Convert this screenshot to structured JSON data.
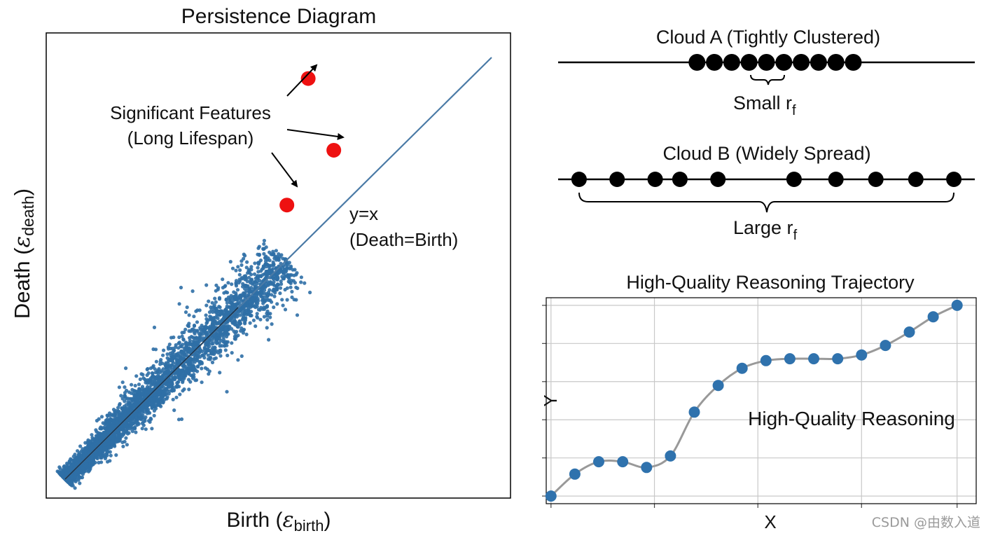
{
  "persistence": {
    "title": "Persistence Diagram",
    "xlabel": "Birth (",
    "xlabel_sym": "ε",
    "xlabel_sub": "birth",
    "xlabel_close": ")",
    "ylabel": "Death (",
    "ylabel_sym": "ε",
    "ylabel_sub": "death",
    "ylabel_close": ")",
    "annotation_line1": "Significant Features",
    "annotation_line2": "(Long Lifespan)",
    "diag_label1": "y=x",
    "diag_label2": "(Death=Birth)"
  },
  "cloud_a": {
    "title": "Cloud A (Tightly Clustered)",
    "label": "Small r",
    "label_sub": "f"
  },
  "cloud_b": {
    "title": "Cloud B (Widely Spread)",
    "label": "Large r",
    "label_sub": "f"
  },
  "trajectory": {
    "title": "High-Quality Reasoning Trajectory",
    "xlabel": "X",
    "ylabel": "Y",
    "annotation": "High-Quality Reasoning"
  },
  "colors": {
    "cloud_points": "#2f6fa6",
    "significant": "#ee1111",
    "diagonal": "#4a7aa6",
    "trajectory_line": "#999999",
    "trajectory_points": "#2f72ad"
  },
  "watermark": "CSDN @由数入道",
  "chart_data": [
    {
      "type": "scatter",
      "title": "Persistence Diagram",
      "xlabel": "Birth (ε_birth)",
      "ylabel": "Death (ε_death)",
      "xlim": [
        0,
        1
      ],
      "ylim": [
        0,
        1
      ],
      "grid": false,
      "reference_line": "y=x",
      "significant_points": [
        {
          "x": 0.57,
          "y": 0.95
        },
        {
          "x": 0.63,
          "y": 0.78
        },
        {
          "x": 0.52,
          "y": 0.65
        }
      ],
      "cloud": {
        "description_free": true,
        "count": 4000,
        "min": 0.0,
        "max": 0.52
      }
    },
    {
      "type": "scatter",
      "title": "Cloud A (Tightly Clustered)",
      "x": [
        0,
        1,
        2,
        3,
        4,
        5,
        6,
        7,
        8,
        9
      ],
      "xlim": [
        -8,
        16
      ]
    },
    {
      "type": "scatter",
      "title": "Cloud B (Widely Spread)",
      "x": [
        0,
        1,
        2,
        2.65,
        3.65,
        5.65,
        6.75,
        7.8,
        8.85,
        9.85
      ],
      "xlim": [
        -0.55,
        10.4
      ]
    },
    {
      "type": "line",
      "title": "High-Quality Reasoning Trajectory",
      "xlabel": "X",
      "ylabel": "Y",
      "grid": true,
      "x": [
        0,
        1,
        2,
        3,
        4,
        5,
        6,
        7,
        8,
        9,
        10,
        11,
        12,
        13,
        14,
        15,
        16,
        17
      ],
      "y": [
        0.0,
        0.115,
        0.18,
        0.18,
        0.15,
        0.21,
        0.44,
        0.58,
        0.67,
        0.71,
        0.72,
        0.72,
        0.72,
        0.74,
        0.79,
        0.86,
        0.94,
        1.0
      ]
    }
  ]
}
